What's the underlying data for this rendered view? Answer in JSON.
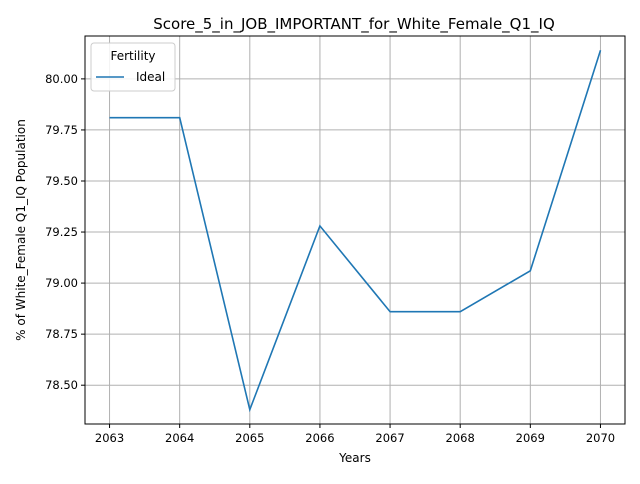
{
  "chart_data": {
    "type": "line",
    "title": "Score_5_in_JOB_IMPORTANT_for_White_Female_Q1_IQ",
    "xlabel": "Years",
    "ylabel": "% of White_Female Q1_IQ Population",
    "x": [
      2063,
      2064,
      2065,
      2066,
      2067,
      2068,
      2069,
      2070
    ],
    "series": [
      {
        "name": "Ideal",
        "color": "#1f77b4",
        "values": [
          79.81,
          79.81,
          78.38,
          79.28,
          78.86,
          78.86,
          79.06,
          80.14
        ]
      }
    ],
    "xticks": [
      "2063",
      "2064",
      "2065",
      "2066",
      "2067",
      "2068",
      "2069",
      "2070"
    ],
    "yticks": [
      "78.50",
      "78.75",
      "79.00",
      "79.25",
      "79.50",
      "79.75",
      "80.00"
    ],
    "ytick_values": [
      78.5,
      78.75,
      79.0,
      79.25,
      79.5,
      79.75,
      80.0
    ],
    "xlim": [
      2062.65,
      2070.35
    ],
    "ylim": [
      78.31,
      80.21
    ],
    "grid": true,
    "legend": {
      "title": "Fertility",
      "placement": "top-left"
    }
  }
}
